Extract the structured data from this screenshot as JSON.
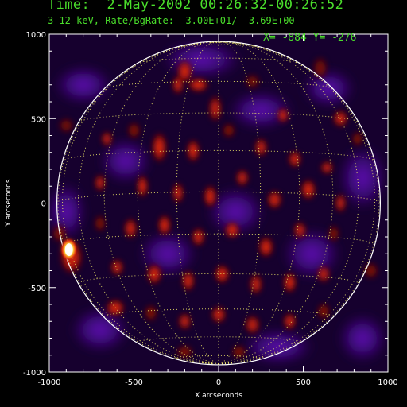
{
  "header": {
    "time_line": "Time:  2-May-2002 00:26:32-00:26:52",
    "rate_line": "3-12 keV, Rate/BgRate:  3.00E+01/  3.69E+00",
    "coord_readout": "X= -884 Y= -276"
  },
  "colors": {
    "header_text": "#4ade2b",
    "limb": "#ffffff",
    "grid": "#f6f06a",
    "background": "#000000"
  },
  "chart_data": {
    "type": "heatmap",
    "title": "",
    "xlabel": "X arcseconds",
    "ylabel": "Y arcseconds",
    "xlim": [
      -1000,
      1000
    ],
    "ylim": [
      -1000,
      1000
    ],
    "x_ticks": [
      -1000,
      -500,
      0,
      500,
      1000
    ],
    "y_ticks": [
      -1000,
      -500,
      0,
      500,
      1000
    ],
    "x_tick_labels": [
      "-1000",
      "-500",
      "0",
      "500",
      "1000"
    ],
    "y_tick_labels": [
      "-1000",
      "-500",
      "0",
      "500",
      "1000"
    ],
    "solar_radius": 955,
    "grid": "heliographic 15° lat/lon grid on disk",
    "colormap": "black-purple-red-yellow-white",
    "peak_source": {
      "x": -884,
      "y": -276
    },
    "blobs": [
      {
        "x": -884,
        "y": -276,
        "rx": 40,
        "ry": 55,
        "level": 1.0
      },
      {
        "x": -870,
        "y": -320,
        "rx": 60,
        "ry": 90,
        "level": 0.45
      },
      {
        "x": -940,
        "y": -180,
        "rx": 40,
        "ry": 50,
        "level": 0.25
      },
      {
        "x": -200,
        "y": 780,
        "rx": 40,
        "ry": 60,
        "level": 0.45
      },
      {
        "x": -240,
        "y": 700,
        "rx": 30,
        "ry": 50,
        "level": 0.4
      },
      {
        "x": -120,
        "y": 700,
        "rx": 55,
        "ry": 38,
        "level": 0.45
      },
      {
        "x": -20,
        "y": 560,
        "rx": 35,
        "ry": 70,
        "level": 0.35
      },
      {
        "x": 200,
        "y": 720,
        "rx": 40,
        "ry": 40,
        "level": 0.2
      },
      {
        "x": 380,
        "y": 520,
        "rx": 30,
        "ry": 40,
        "level": 0.45
      },
      {
        "x": 600,
        "y": 800,
        "rx": 40,
        "ry": 60,
        "level": 0.2
      },
      {
        "x": 720,
        "y": 500,
        "rx": 40,
        "ry": 45,
        "level": 0.4
      },
      {
        "x": -660,
        "y": 380,
        "rx": 30,
        "ry": 40,
        "level": 0.35
      },
      {
        "x": -500,
        "y": 430,
        "rx": 35,
        "ry": 45,
        "level": 0.3
      },
      {
        "x": -350,
        "y": 330,
        "rx": 40,
        "ry": 80,
        "level": 0.45
      },
      {
        "x": -150,
        "y": 310,
        "rx": 35,
        "ry": 60,
        "level": 0.45
      },
      {
        "x": 60,
        "y": 430,
        "rx": 35,
        "ry": 40,
        "level": 0.3
      },
      {
        "x": 250,
        "y": 330,
        "rx": 35,
        "ry": 50,
        "level": 0.35
      },
      {
        "x": 450,
        "y": 260,
        "rx": 35,
        "ry": 45,
        "level": 0.4
      },
      {
        "x": 640,
        "y": 210,
        "rx": 35,
        "ry": 35,
        "level": 0.35
      },
      {
        "x": 820,
        "y": 380,
        "rx": 30,
        "ry": 40,
        "level": 0.3
      },
      {
        "x": -700,
        "y": 120,
        "rx": 30,
        "ry": 45,
        "level": 0.35
      },
      {
        "x": -450,
        "y": 100,
        "rx": 30,
        "ry": 60,
        "level": 0.45
      },
      {
        "x": -240,
        "y": 60,
        "rx": 30,
        "ry": 55,
        "level": 0.4
      },
      {
        "x": -50,
        "y": 40,
        "rx": 35,
        "ry": 60,
        "level": 0.45
      },
      {
        "x": 140,
        "y": 150,
        "rx": 35,
        "ry": 45,
        "level": 0.35
      },
      {
        "x": 330,
        "y": 20,
        "rx": 40,
        "ry": 50,
        "level": 0.4
      },
      {
        "x": 530,
        "y": 80,
        "rx": 40,
        "ry": 55,
        "level": 0.45
      },
      {
        "x": 720,
        "y": 0,
        "rx": 30,
        "ry": 50,
        "level": 0.35
      },
      {
        "x": -700,
        "y": -120,
        "rx": 30,
        "ry": 45,
        "level": 0.3
      },
      {
        "x": -520,
        "y": -150,
        "rx": 35,
        "ry": 55,
        "level": 0.4
      },
      {
        "x": -320,
        "y": -130,
        "rx": 35,
        "ry": 55,
        "level": 0.45
      },
      {
        "x": -120,
        "y": -200,
        "rx": 35,
        "ry": 50,
        "level": 0.4
      },
      {
        "x": 80,
        "y": -160,
        "rx": 40,
        "ry": 45,
        "level": 0.45
      },
      {
        "x": 280,
        "y": -260,
        "rx": 40,
        "ry": 55,
        "level": 0.45
      },
      {
        "x": 480,
        "y": -160,
        "rx": 35,
        "ry": 45,
        "level": 0.35
      },
      {
        "x": 680,
        "y": -180,
        "rx": 30,
        "ry": 45,
        "level": 0.3
      },
      {
        "x": -600,
        "y": -380,
        "rx": 35,
        "ry": 45,
        "level": 0.35
      },
      {
        "x": -380,
        "y": -420,
        "rx": 40,
        "ry": 55,
        "level": 0.45
      },
      {
        "x": -180,
        "y": -460,
        "rx": 35,
        "ry": 55,
        "level": 0.4
      },
      {
        "x": 20,
        "y": -420,
        "rx": 40,
        "ry": 50,
        "level": 0.45
      },
      {
        "x": 220,
        "y": -480,
        "rx": 35,
        "ry": 55,
        "level": 0.35
      },
      {
        "x": 420,
        "y": -470,
        "rx": 35,
        "ry": 55,
        "level": 0.45
      },
      {
        "x": 620,
        "y": -420,
        "rx": 35,
        "ry": 45,
        "level": 0.35
      },
      {
        "x": -610,
        "y": -620,
        "rx": 50,
        "ry": 45,
        "level": 0.45
      },
      {
        "x": -400,
        "y": -650,
        "rx": 35,
        "ry": 45,
        "level": 0.3
      },
      {
        "x": -200,
        "y": -700,
        "rx": 35,
        "ry": 45,
        "level": 0.35
      },
      {
        "x": 0,
        "y": -660,
        "rx": 40,
        "ry": 45,
        "level": 0.4
      },
      {
        "x": 200,
        "y": -720,
        "rx": 40,
        "ry": 50,
        "level": 0.35
      },
      {
        "x": 420,
        "y": -700,
        "rx": 35,
        "ry": 45,
        "level": 0.4
      },
      {
        "x": 620,
        "y": -640,
        "rx": 35,
        "ry": 45,
        "level": 0.3
      },
      {
        "x": -200,
        "y": -880,
        "rx": 45,
        "ry": 35,
        "level": 0.3
      },
      {
        "x": 120,
        "y": -880,
        "rx": 40,
        "ry": 35,
        "level": 0.3
      },
      {
        "x": -900,
        "y": 460,
        "rx": 40,
        "ry": 40,
        "level": 0.2
      },
      {
        "x": 900,
        "y": -400,
        "rx": 40,
        "ry": 45,
        "level": 0.25
      }
    ],
    "purple_patches": [
      {
        "x": -800,
        "y": 700,
        "rx": 180,
        "ry": 120
      },
      {
        "x": -550,
        "y": 250,
        "rx": 160,
        "ry": 140
      },
      {
        "x": 250,
        "y": 550,
        "rx": 200,
        "ry": 120
      },
      {
        "x": 650,
        "y": 680,
        "rx": 160,
        "ry": 120
      },
      {
        "x": 100,
        "y": -50,
        "rx": 180,
        "ry": 150
      },
      {
        "x": -300,
        "y": -300,
        "rx": 180,
        "ry": 140
      },
      {
        "x": 550,
        "y": -300,
        "rx": 180,
        "ry": 160
      },
      {
        "x": -700,
        "y": -750,
        "rx": 180,
        "ry": 140
      },
      {
        "x": 350,
        "y": -850,
        "rx": 220,
        "ry": 110
      },
      {
        "x": 850,
        "y": 150,
        "rx": 150,
        "ry": 200
      },
      {
        "x": -900,
        "y": -50,
        "rx": 120,
        "ry": 180
      },
      {
        "x": -100,
        "y": 850,
        "rx": 250,
        "ry": 120
      },
      {
        "x": 850,
        "y": -800,
        "rx": 150,
        "ry": 150
      }
    ]
  }
}
